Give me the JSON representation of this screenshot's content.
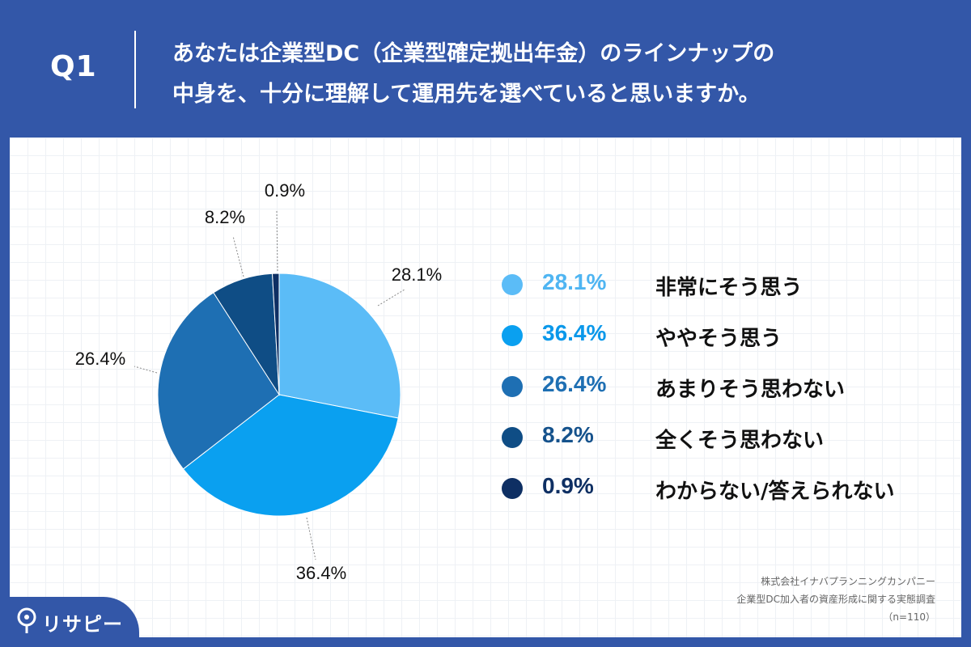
{
  "header": {
    "question_number": "Q1",
    "question_line1": "あなたは企業型DC（企業型確定拠出年金）のラインナップの",
    "question_line2": "中身を、十分に理解して運用先を選べていると思いますか。"
  },
  "chart_data": {
    "type": "pie",
    "title": "あなたは企業型DC（企業型確定拠出年金）のラインナップの中身を、十分に理解して運用先を選べていると思いますか。",
    "categories": [
      "非常にそう思う",
      "ややそう思う",
      "あまりそう思わない",
      "全くそう思わない",
      "わからない/答えられない"
    ],
    "values": [
      28.1,
      36.4,
      26.4,
      8.2,
      0.9
    ],
    "labels": [
      "28.1%",
      "36.4%",
      "26.4%",
      "8.2%",
      "0.9%"
    ],
    "colors": [
      "#5bbcf7",
      "#0aa0f0",
      "#1e6fb3",
      "#0f4d85",
      "#0e2f63"
    ],
    "legend_text_colors": [
      "#4fb5f2",
      "#0a98ea",
      "#1e6fb3",
      "#15528c",
      "#0e2f63"
    ],
    "start_angle": "12 o'clock",
    "direction": "clockwise",
    "legend_position": "right"
  },
  "source": {
    "company": "株式会社イナバプランニングカンパニー",
    "survey": "企業型DC加入者の資産形成に関する実態調査",
    "sample": "（n=110）"
  },
  "logo": {
    "text": "リサピー"
  }
}
